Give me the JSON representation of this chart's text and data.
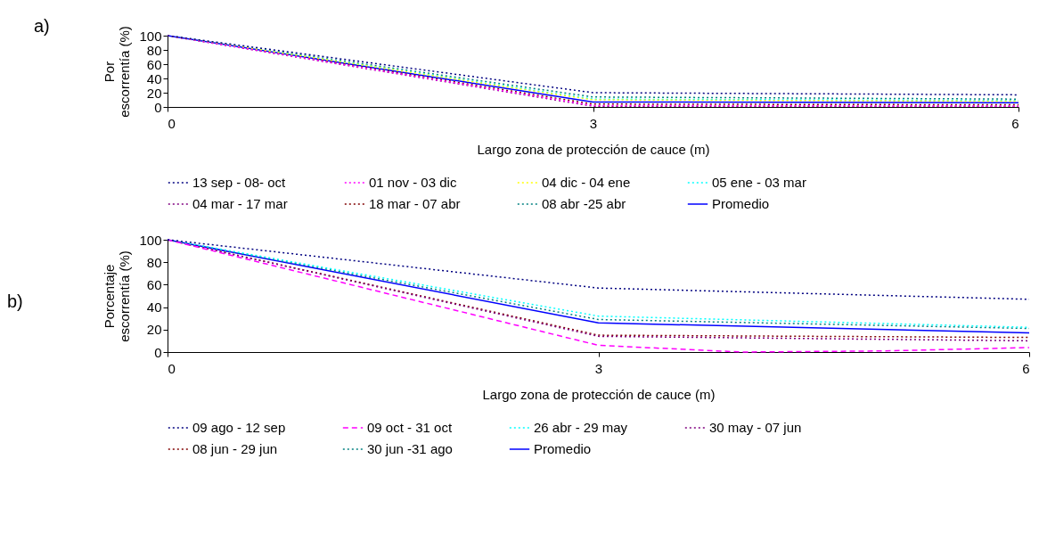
{
  "chart_data": [
    {
      "type": "line",
      "annotations": [
        "a)"
      ],
      "xlabel": "Largo zona de protección de cauce (m)",
      "ylabel": "Por escorrentía (%)",
      "xlim": [
        0,
        6
      ],
      "xticks": [
        0,
        3,
        6
      ],
      "ylim": [
        0,
        100
      ],
      "yticks": [
        0,
        20,
        40,
        60,
        80,
        100
      ],
      "grid": false,
      "legend": "bottom",
      "x": [
        0,
        3,
        6
      ],
      "series": [
        {
          "name": "13 sep - 08- oct",
          "color": "#000080",
          "line_style": "dotted",
          "values": [
            100,
            20,
            17
          ]
        },
        {
          "name": "01 nov - 03 dic",
          "color": "#ff00ff",
          "line_style": "dotted",
          "values": [
            100,
            2,
            1
          ]
        },
        {
          "name": "04 dic - 04 ene",
          "color": "#ffff00",
          "line_style": "dotted",
          "values": [
            100,
            10,
            8
          ]
        },
        {
          "name": "05 ene - 03 mar",
          "color": "#00ffff",
          "line_style": "dotted",
          "values": [
            100,
            11,
            9
          ]
        },
        {
          "name": "04 mar - 17 mar",
          "color": "#800080",
          "line_style": "dotted",
          "values": [
            100,
            1,
            1
          ]
        },
        {
          "name": "18 mar - 07 abr",
          "color": "#800000",
          "line_style": "dotted",
          "values": [
            100,
            4,
            3
          ]
        },
        {
          "name": "08 abr -25 abr",
          "color": "#008080",
          "line_style": "dotted",
          "values": [
            100,
            14,
            11
          ]
        },
        {
          "name": "Promedio",
          "color": "#0000ff",
          "line_style": "solid",
          "values": [
            100,
            7,
            6
          ]
        }
      ]
    },
    {
      "type": "line",
      "annotations": [
        "b)"
      ],
      "xlabel": "Largo zona de protección de cauce (m)",
      "ylabel": "Porcentaje escorrentía (%)",
      "xlim": [
        0,
        6
      ],
      "xticks": [
        0,
        3,
        6
      ],
      "ylim": [
        0,
        100
      ],
      "yticks": [
        0,
        20,
        40,
        60,
        80,
        100
      ],
      "grid": false,
      "legend": "bottom",
      "x": [
        0,
        3,
        6
      ],
      "series": [
        {
          "name": "09 ago - 12 sep",
          "color": "#000080",
          "line_style": "dotted",
          "values": [
            100,
            57,
            47
          ]
        },
        {
          "name": "09 oct - 31 oct",
          "color": "#ff00ff",
          "line_style": "dashed",
          "x": [
            0,
            3,
            4,
            5,
            6
          ],
          "values": [
            100,
            6,
            0,
            1,
            4
          ]
        },
        {
          "name": "26 abr - 29 may",
          "color": "#00ffff",
          "line_style": "dotted",
          "values": [
            100,
            32,
            22
          ]
        },
        {
          "name": "30 may - 07 jun",
          "color": "#800080",
          "line_style": "dotted",
          "values": [
            100,
            14,
            10
          ]
        },
        {
          "name": "08 jun - 29 jun",
          "color": "#800000",
          "line_style": "dotted",
          "values": [
            100,
            15,
            13
          ]
        },
        {
          "name": "30 jun -31 ago",
          "color": "#008080",
          "line_style": "dotted",
          "values": [
            100,
            29,
            21
          ]
        },
        {
          "name": "Promedio",
          "color": "#0000ff",
          "line_style": "solid",
          "values": [
            100,
            26,
            17
          ]
        }
      ]
    }
  ]
}
